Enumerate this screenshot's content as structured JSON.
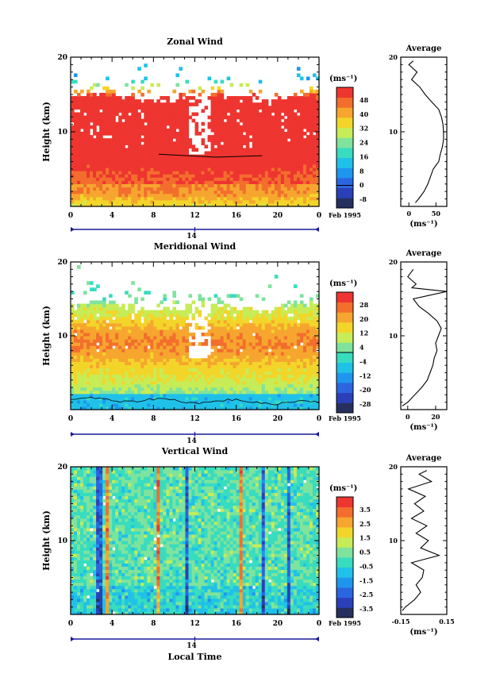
{
  "colors": {
    "zonal_palette": [
      "#26305f",
      "#2a40b8",
      "#2b66e0",
      "#1f96ee",
      "#20c1e8",
      "#38dcbf",
      "#7fe39c",
      "#c6ec57",
      "#f3d52a",
      "#f6a62e",
      "#f36e2d",
      "#ee3530"
    ],
    "vertical_palette": [
      "#26305f",
      "#2a40b8",
      "#2b66e0",
      "#1f96ee",
      "#20c1e8",
      "#38dcbf",
      "#7fe39c",
      "#c6ec57",
      "#f3d52a",
      "#f6a62e",
      "#f36e2d",
      "#ee3530"
    ],
    "axis": "#000000",
    "timebar": "#1a1a9a"
  },
  "chart_data": [
    {
      "type": "heatmap",
      "title": "Zonal Wind",
      "ylabel": "Height (km)",
      "ylim": [
        0,
        20
      ],
      "xlim": [
        0,
        24
      ],
      "x_ticks": [
        "0",
        "4",
        "8",
        "12",
        "16",
        "20",
        "0"
      ],
      "y_ticks": [
        "10",
        "20"
      ],
      "date_label": "14",
      "date_suffix": "Feb 1995",
      "colorbar_unit": "(ms⁻¹)",
      "colorbar_ticks": [
        "48",
        "40",
        "32",
        "24",
        "16",
        "8",
        "0",
        "-8"
      ],
      "colorbar_range": [
        -12,
        52
      ],
      "field_profile": [
        [
          0,
          34
        ],
        [
          2,
          44
        ],
        [
          4,
          45
        ],
        [
          6,
          50
        ],
        [
          8,
          55
        ],
        [
          10,
          58
        ],
        [
          12,
          60
        ],
        [
          13.5,
          60
        ],
        [
          15,
          45
        ],
        [
          17,
          10
        ]
      ],
      "top_of_data_km": 14.8,
      "average": {
        "title": "Average",
        "x_ticks": [
          "0",
          "50"
        ],
        "xlim": [
          -15,
          70
        ],
        "xlabel": "(ms⁻¹)",
        "height": [
          0.5,
          1,
          2,
          3,
          4,
          5,
          6,
          7,
          8,
          9,
          10,
          11,
          12,
          13,
          14,
          15,
          16,
          17,
          18,
          19,
          19.5
        ],
        "values": [
          12,
          18,
          28,
          35,
          40,
          45,
          55,
          58,
          62,
          64,
          64,
          63,
          60,
          55,
          42,
          30,
          20,
          5,
          15,
          0,
          8
        ]
      }
    },
    {
      "type": "heatmap",
      "title": "Meridional Wind",
      "ylabel": "Height (km)",
      "ylim": [
        0,
        20
      ],
      "xlim": [
        0,
        24
      ],
      "x_ticks": [
        "0",
        "4",
        "8",
        "12",
        "16",
        "20",
        "0"
      ],
      "y_ticks": [
        "10",
        "20"
      ],
      "date_label": "14",
      "date_suffix": "Feb 1995",
      "colorbar_unit": "(ms⁻¹)",
      "colorbar_ticks": [
        "28",
        "20",
        "12",
        "4",
        "-4",
        "-12",
        "-20",
        "-28"
      ],
      "colorbar_range": [
        -32,
        32
      ],
      "field_profile": [
        [
          0,
          -6
        ],
        [
          1,
          -2
        ],
        [
          2,
          4
        ],
        [
          4,
          10
        ],
        [
          6,
          14
        ],
        [
          8,
          20
        ],
        [
          9,
          22
        ],
        [
          10,
          20
        ],
        [
          11,
          18
        ],
        [
          12,
          14
        ],
        [
          13,
          10
        ],
        [
          14,
          8
        ],
        [
          15,
          2
        ],
        [
          16,
          0
        ]
      ],
      "top_of_data_km": 14.0,
      "average": {
        "title": "Average",
        "x_ticks": [
          "0",
          "20"
        ],
        "xlim": [
          -5,
          28
        ],
        "xlabel": "(ms⁻¹)",
        "height": [
          0.5,
          1,
          2,
          3,
          4,
          5,
          6,
          7,
          8,
          9,
          10,
          11,
          12,
          13,
          14,
          15,
          16,
          16.5,
          17,
          18,
          19
        ],
        "values": [
          -4,
          0,
          5,
          10,
          14,
          16,
          18,
          19,
          21,
          20,
          22,
          24,
          21,
          15,
          8,
          4,
          28,
          3,
          6,
          0,
          4
        ]
      }
    },
    {
      "type": "heatmap",
      "title": "Vertical Wind",
      "ylabel": "Height (km)",
      "xlabel": "Local Time",
      "ylim": [
        0,
        20
      ],
      "xlim": [
        0,
        24
      ],
      "x_ticks": [
        "0",
        "4",
        "8",
        "12",
        "16",
        "20",
        "0"
      ],
      "y_ticks": [
        "10",
        "20"
      ],
      "date_label": "14",
      "date_suffix": "Feb 1995",
      "colorbar_unit": "(ms⁻¹)",
      "colorbar_ticks": [
        "3.5",
        "2.5",
        "1.5",
        "0.5",
        "-0.5",
        "-1.5",
        "-2.5",
        "-3.5"
      ],
      "colorbar_range": [
        -4,
        4
      ],
      "average": {
        "title": "Average",
        "x_ticks": [
          "-0.15",
          "0.15"
        ],
        "xlim": [
          -0.15,
          0.15
        ],
        "xlabel": "(ms⁻¹)",
        "height": [
          0.5,
          1,
          2,
          3,
          4,
          5,
          6,
          7,
          8,
          9,
          10,
          11,
          12,
          13,
          14,
          15,
          16,
          17,
          18,
          19,
          19.5
        ],
        "values": [
          -0.14,
          -0.12,
          -0.06,
          -0.02,
          -0.05,
          -0.01,
          0.0,
          -0.08,
          0.1,
          -0.02,
          0.03,
          -0.05,
          0.02,
          -0.08,
          0.0,
          -0.06,
          0.01,
          -0.1,
          0.05,
          -0.03,
          0.02
        ]
      }
    }
  ]
}
